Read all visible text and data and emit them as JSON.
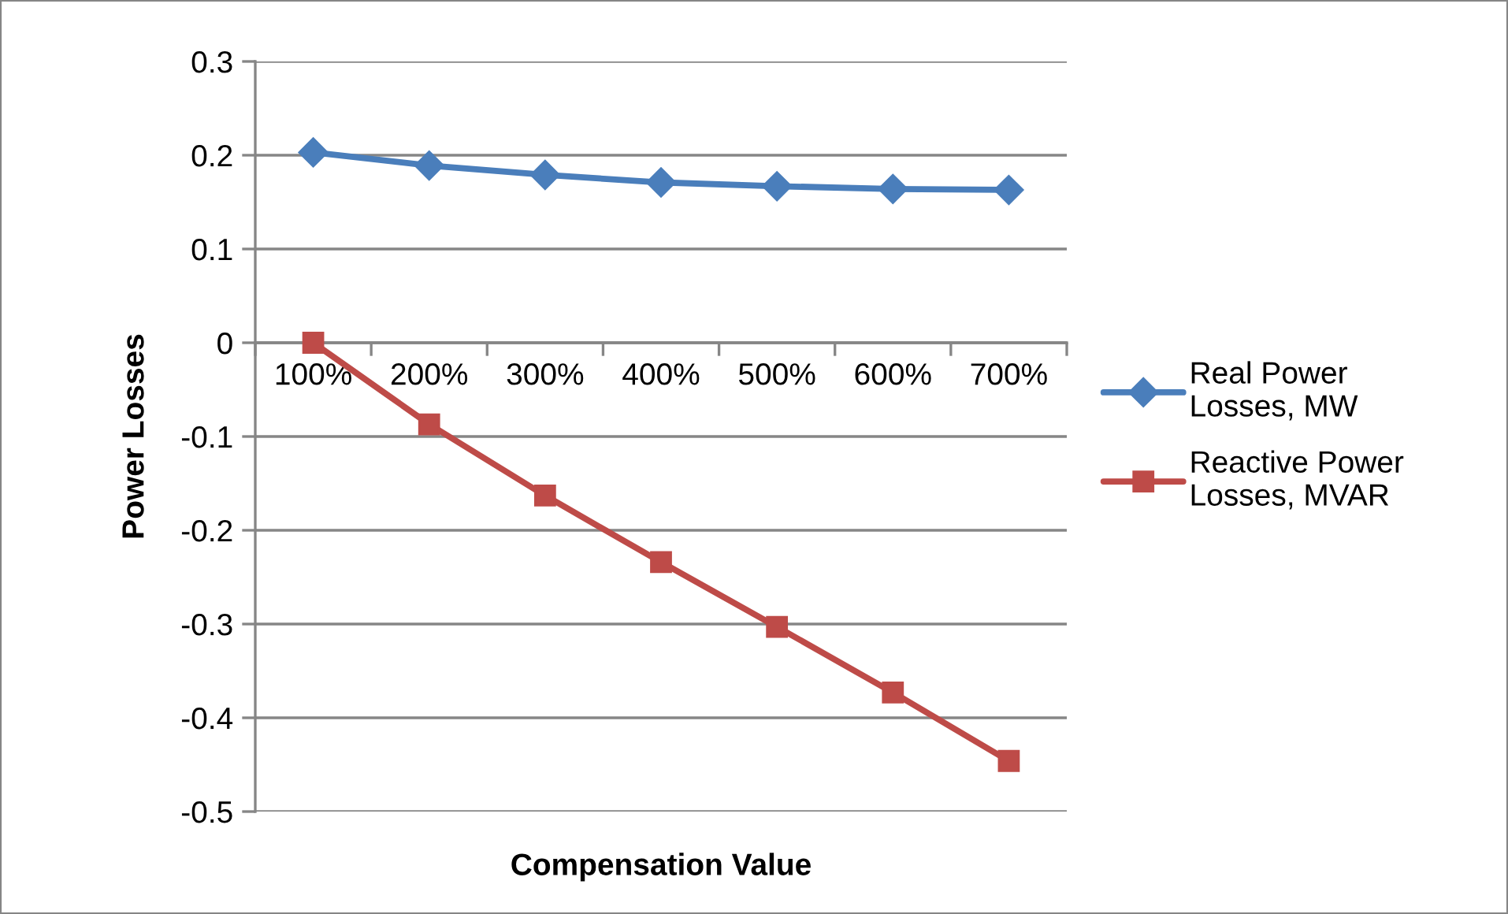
{
  "chart_data": {
    "type": "line",
    "xlabel": "Compensation Value",
    "ylabel": "Power Losses",
    "categories": [
      "100%",
      "200%",
      "300%",
      "400%",
      "500%",
      "600%",
      "700%"
    ],
    "series": [
      {
        "name": "Real Power Losses, MW",
        "color": "#4a7ebb",
        "marker": "diamond",
        "values": [
          0.203,
          0.189,
          0.179,
          0.171,
          0.167,
          0.164,
          0.163
        ]
      },
      {
        "name": "Reactive Power Losses, MVAR",
        "color": "#be4b48",
        "marker": "square",
        "values": [
          0.0,
          -0.087,
          -0.163,
          -0.234,
          -0.303,
          -0.373,
          -0.446
        ]
      }
    ],
    "ylim": [
      -0.5,
      0.3
    ],
    "yticks": [
      0.3,
      0.2,
      0.1,
      0,
      -0.1,
      -0.2,
      -0.3,
      -0.4,
      -0.5
    ],
    "grid": "y",
    "legend": "right",
    "line_style": "solid"
  }
}
